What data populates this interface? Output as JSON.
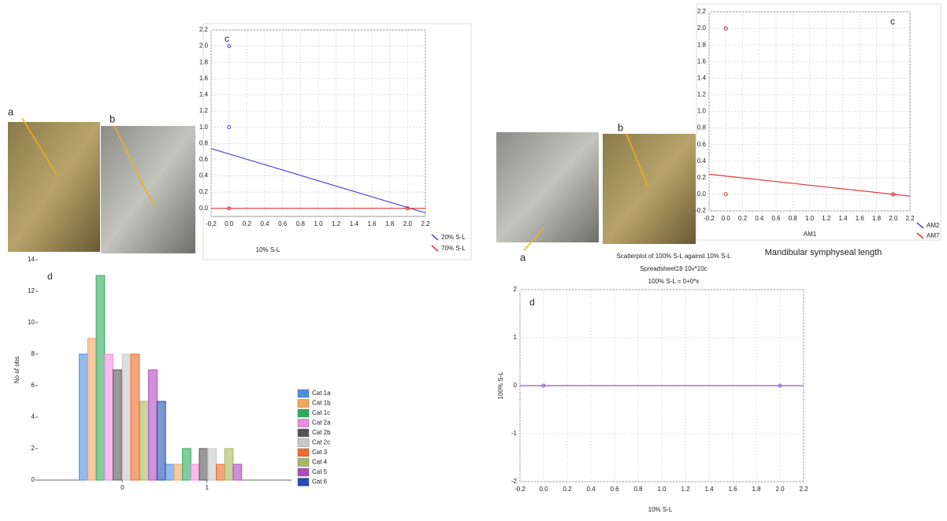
{
  "photo_labels": [
    "a",
    "b",
    "a",
    "b"
  ],
  "caption": "Mandibular symphyseal length",
  "chart_data": [
    {
      "type": "scatter",
      "label": "c",
      "xlabel": "10% S-L",
      "grid": true,
      "xlim": [
        -0.2,
        2.2
      ],
      "ylim": [
        -0.1,
        2.2
      ],
      "xticks": [
        -0.2,
        {
          "value": 0,
          "label": "0.0"
        },
        0.2,
        0.4,
        0.6,
        0.8,
        {
          "value": 1,
          "label": "1.0"
        },
        1.2,
        1.4,
        1.6,
        1.8,
        {
          "value": 2,
          "label": "2.0"
        },
        2.2
      ],
      "yticks": [
        {
          "value": 0,
          "label": "0.0"
        },
        0.2,
        0.4,
        0.6,
        0.8,
        {
          "value": 1,
          "label": "1.0"
        },
        1.2,
        1.4,
        1.6,
        1.8,
        {
          "value": 2,
          "label": "2.0"
        },
        2.2
      ],
      "series": [
        {
          "name": "20% S-L",
          "color": "#4a4ae0",
          "x": [
            0,
            0,
            2
          ],
          "values": [
            2,
            1,
            0
          ],
          "fit": [
            0.67,
            -0.33
          ]
        },
        {
          "name": "70% S-L",
          "color": "#e03838",
          "x": [
            0,
            2
          ],
          "values": [
            0,
            0
          ],
          "fit": [
            0,
            0
          ]
        }
      ]
    },
    {
      "type": "bar",
      "label": "d",
      "ylabel": "No of obs",
      "grid": false,
      "xlim": [
        -1,
        2
      ],
      "ylim": [
        0,
        14
      ],
      "xticks": [
        0,
        1
      ],
      "yticks": [
        0,
        2,
        4,
        6,
        8,
        10,
        12,
        14
      ],
      "series": [
        {
          "name": "Cat 1a",
          "color": "#4a90e2",
          "x": [
            -0.46,
            0.56
          ],
          "values": [
            8,
            1
          ]
        },
        {
          "name": "Cat 1b",
          "color": "#f4a460",
          "x": [
            -0.36,
            0.66
          ],
          "values": [
            9,
            1
          ]
        },
        {
          "name": "Cat 1c",
          "color": "#2eaa5c",
          "x": [
            -0.26,
            0.76
          ],
          "values": [
            13,
            2
          ]
        },
        {
          "name": "Cat 2a",
          "color": "#f08ce0",
          "x": [
            -0.16,
            0.86
          ],
          "values": [
            8,
            1
          ]
        },
        {
          "name": "Cat 2b",
          "color": "#555555",
          "x": [
            -0.06,
            0.96
          ],
          "values": [
            7,
            2
          ]
        },
        {
          "name": "Cat 2c",
          "color": "#c8c8c8",
          "x": [
            0.05,
            1.06
          ],
          "values": [
            8,
            2
          ]
        },
        {
          "name": "Cat 3",
          "color": "#f06a2a",
          "x": [
            0.15,
            1.16
          ],
          "values": [
            8,
            1
          ]
        },
        {
          "name": "Cat 4",
          "color": "#a8b860",
          "x": [
            0.26,
            1.26
          ],
          "values": [
            5,
            2
          ]
        },
        {
          "name": "Cat 5",
          "color": "#b04ac0",
          "x": [
            0.36,
            1.36
          ],
          "values": [
            7,
            1
          ]
        },
        {
          "name": "Cat 6",
          "color": "#2050b0",
          "x": [
            0.46
          ],
          "values": [
            5
          ]
        }
      ]
    },
    {
      "type": "scatter",
      "label": "c",
      "xlabel": "AM1",
      "grid": true,
      "xlim": [
        -0.2,
        2.2
      ],
      "ylim": [
        -0.2,
        2.2
      ],
      "xticks": [
        -0.2,
        {
          "value": 0,
          "label": "0.0"
        },
        0.2,
        0.4,
        0.6,
        0.8,
        {
          "value": 1,
          "label": "1.0"
        },
        1.2,
        1.4,
        1.6,
        1.8,
        {
          "value": 2,
          "label": "2.0"
        },
        2.2
      ],
      "yticks": [
        -0.2,
        {
          "value": 0,
          "label": "0.0"
        },
        0.2,
        0.4,
        0.6,
        0.8,
        {
          "value": 1,
          "label": "1.0"
        },
        1.2,
        1.4,
        1.6,
        1.8,
        {
          "value": 2,
          "label": "2.0"
        },
        2.2
      ],
      "series": [
        {
          "name": "AM2",
          "color": "#4a4ae0",
          "x": [
            0,
            2
          ],
          "values": [
            2,
            0
          ]
        },
        {
          "name": "AM7",
          "color": "#e03838",
          "x": [
            0,
            0,
            2
          ],
          "values": [
            2,
            0,
            0
          ],
          "fit": [
            0.22,
            -0.11
          ]
        }
      ]
    },
    {
      "type": "scatter",
      "label": "d",
      "xlabel": "10% S-L",
      "ylabel": "100% S-L",
      "grid": true,
      "title_lines": [
        "Scatterplot of 100% S-L against 10% S-L",
        "Spreadsheet18 10v*10c",
        "100% S-L = 0+0*x"
      ],
      "xlim": [
        -0.2,
        2.2
      ],
      "ylim": [
        -2,
        2
      ],
      "xticks": [
        -0.2,
        {
          "value": 0,
          "label": "0.0"
        },
        0.2,
        0.4,
        0.6,
        0.8,
        {
          "value": 1,
          "label": "1.0"
        },
        1.2,
        1.4,
        1.6,
        1.8,
        {
          "value": 2,
          "label": "2.0"
        },
        2.2
      ],
      "yticks": [
        -2,
        -1,
        0,
        1,
        2
      ],
      "series": [
        {
          "color": "#8a5ad0",
          "x": [
            0,
            2
          ],
          "values": [
            0,
            0
          ],
          "fit": [
            0,
            0
          ]
        }
      ]
    }
  ]
}
